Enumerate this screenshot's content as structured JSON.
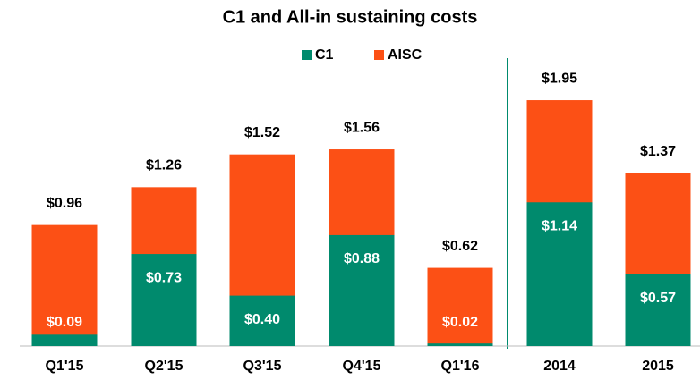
{
  "chart_data": {
    "type": "bar",
    "title": "C1 and All-in sustaining costs",
    "categories": [
      "Q1'15",
      "Q2'15",
      "Q3'15",
      "Q4'15",
      "Q1'16",
      "2014",
      "2015"
    ],
    "series": [
      {
        "name": "AISC",
        "color": "#fc5015",
        "values": [
          0.96,
          1.26,
          1.52,
          1.56,
          0.62,
          1.95,
          1.37
        ],
        "value_labels": [
          "$0.96",
          "$1.26",
          "$1.52",
          "$1.56",
          "$0.62",
          "$1.95",
          "$1.37"
        ]
      },
      {
        "name": "C1",
        "color": "#008a6d",
        "values": [
          0.09,
          0.73,
          0.4,
          0.88,
          0.02,
          1.14,
          0.57
        ],
        "value_labels": [
          "$0.09",
          "$0.73",
          "$0.40",
          "$0.88",
          "$0.02",
          "$1.14",
          "$0.57"
        ]
      }
    ]
  }
}
